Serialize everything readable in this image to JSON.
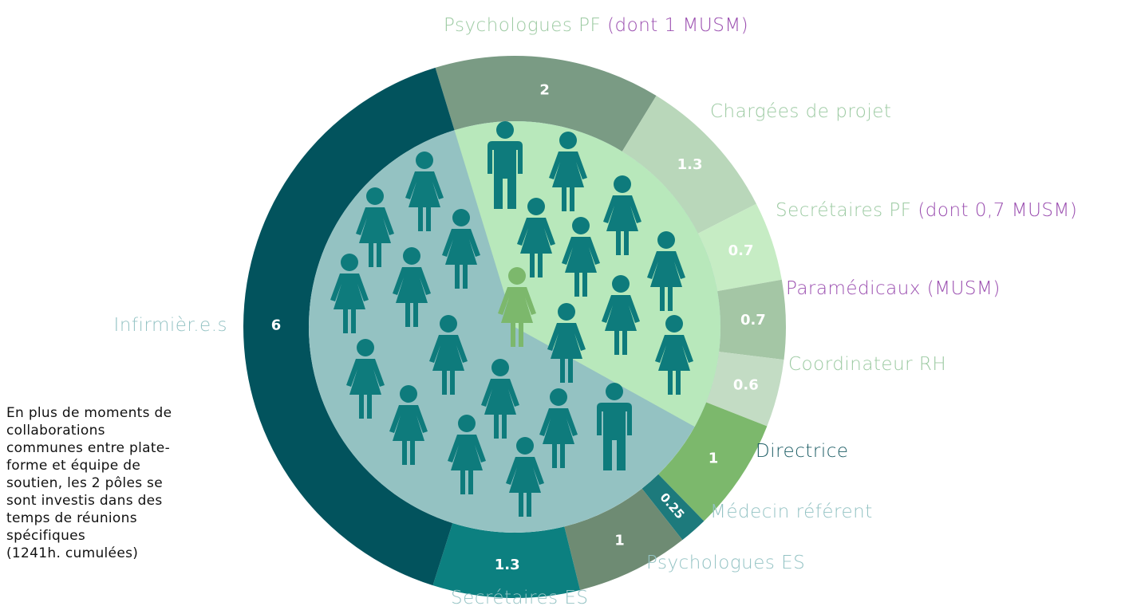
{
  "chart_data": {
    "type": "donut",
    "categories": [
      "Psychologues PF",
      "Chargées de projet",
      "Secrétaires PF",
      "Paramédicaux (MUSM)",
      "Coordinateur RH",
      "Directrice",
      "Médecin référent",
      "Psychologues ES",
      "Secrétaires ES",
      "Infirmièr.e.s"
    ],
    "notes": [
      "(dont 1 MUSM)",
      null,
      "(dont 0,7 MUSM)",
      null,
      null,
      null,
      null,
      null,
      null,
      null
    ],
    "values": [
      2,
      1.3,
      0.7,
      0.7,
      0.6,
      1,
      0.25,
      1,
      1.3,
      6
    ],
    "colors": [
      "#7a9b84",
      "#b9d7ba",
      "#c6ecc4",
      "#a4c6a5",
      "#c3dcc4",
      "#7cb86c",
      "#1d7a7c",
      "#6e8b73",
      "#0c8080",
      "#02535d"
    ],
    "label_colors": [
      "#9ccaa2",
      "#9ccaa2",
      "#9ccaa2",
      "#9b4fb0",
      "#9ccaa2",
      "#1e5e66",
      "#94c3c4",
      "#94c3c4",
      "#94c3c4",
      "#94c3c4"
    ],
    "note_color": "#9b4fb0",
    "note_lines": [
      "En plus de moments de",
      "collaborations",
      "communes entre plate-",
      "forme et équipe de",
      "soutien, les 2 pôles se",
      "sont investis dans des",
      "temps de réunions",
      "spécifiques",
      "(1241h. cumulées)"
    ]
  }
}
